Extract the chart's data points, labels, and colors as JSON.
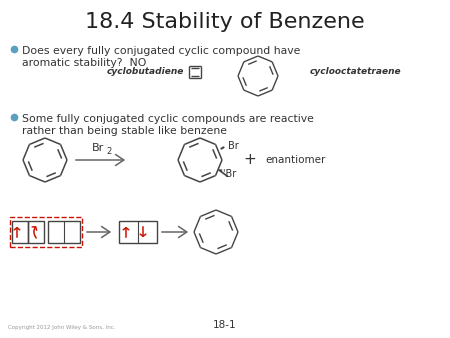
{
  "title": "18.4 Stability of Benzene",
  "title_fontsize": 16,
  "title_color": "#222222",
  "background_color": "#ffffff",
  "bullet1_line1": "Does every fully conjugated cyclic compound have",
  "bullet1_line2": "aromatic stability?  NO",
  "bullet2_line1": "Some fully conjugated cyclic compounds are reactive",
  "bullet2_line2": "rather than being stable like benzene",
  "label_cyclobutadiene": "cyclobutadiene",
  "label_cyclooctatetraene": "cyclooctatetraene",
  "label_page": "18-1",
  "label_copyright": "Copyright 2012 John Wiley & Sons, Inc.",
  "bullet_color": "#5aa0c0",
  "text_color": "#333333",
  "structure_color": "#444444",
  "arrow_color": "#666666",
  "red_color": "#cc1100"
}
